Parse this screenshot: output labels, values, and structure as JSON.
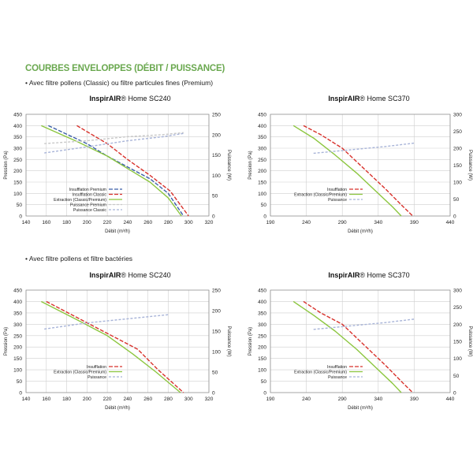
{
  "header": {
    "section_title": "COURBES ENVELOPPES (DÉBIT / PUISSANCE)",
    "subtitle_1": "• Avec filtre pollens (Classic) ou filtre particules fines (Premium)",
    "subtitle_2": "• Avec filtre pollens et filtre bactéries"
  },
  "colors": {
    "insufflation_premium": "#3a5ea8",
    "insufflation_classic": "#d8312b",
    "extraction": "#8cc63f",
    "puissance_premium": "#c8c8c8",
    "puissance_classic": "#a8b4d8",
    "title_green": "#6aa84f"
  },
  "chart_data": [
    {
      "type": "line",
      "title_bold": "InspirAIR",
      "title_reg": "® Home SC240",
      "xlabel": "Débit (m³/h)",
      "ylabel": "Pression (Pa)",
      "y2label": "Puissance (W)",
      "xlim": [
        140,
        320
      ],
      "xticks": [
        140,
        160,
        180,
        200,
        220,
        240,
        260,
        280,
        300,
        320
      ],
      "ylim": [
        0,
        450
      ],
      "yticks": [
        0,
        50,
        100,
        150,
        200,
        250,
        300,
        350,
        400,
        450
      ],
      "y2lim": [
        0,
        250
      ],
      "y2ticks": [
        0,
        50,
        100,
        150,
        200,
        250
      ],
      "legend_position": "bottom-left",
      "series": [
        {
          "name": "Insufflation Premium",
          "axis": "left",
          "color": "#3a5ea8",
          "dash": "5,2",
          "x": [
            162,
            200,
            220,
            245,
            262,
            280,
            295
          ],
          "y": [
            400,
            320,
            265,
            205,
            165,
            100,
            0
          ]
        },
        {
          "name": "Insufflation Classic",
          "axis": "left",
          "color": "#d8312b",
          "dash": "5,2",
          "x": [
            190,
            220,
            240,
            262,
            282,
            300
          ],
          "y": [
            400,
            320,
            250,
            180,
            110,
            0
          ]
        },
        {
          "name": "Extraction (Classic/Premium)",
          "axis": "left",
          "color": "#8cc63f",
          "dash": "",
          "x": [
            155,
            190,
            220,
            240,
            262,
            280,
            293
          ],
          "y": [
            400,
            330,
            265,
            210,
            150,
            80,
            0
          ]
        },
        {
          "name": "Puissance Premium",
          "axis": "right",
          "color": "#c8c8c8",
          "dash": "3,2",
          "x": [
            158,
            200,
            240,
            275,
            295
          ],
          "y": [
            178,
            185,
            195,
            200,
            205
          ]
        },
        {
          "name": "Puissance Classic",
          "axis": "right",
          "color": "#a8b4d8",
          "dash": "3,2",
          "x": [
            158,
            200,
            240,
            275,
            295
          ],
          "y": [
            155,
            170,
            185,
            195,
            203
          ]
        }
      ]
    },
    {
      "type": "line",
      "title_bold": "InspirAIR",
      "title_reg": "® Home SC370",
      "xlabel": "Débit (m³/h)",
      "ylabel": "Pression (Pa)",
      "y2label": "Puissance (W)",
      "xlim": [
        190,
        440
      ],
      "xticks": [
        190,
        240,
        290,
        340,
        390,
        440
      ],
      "ylim": [
        0,
        450
      ],
      "yticks": [
        0,
        50,
        100,
        150,
        200,
        250,
        300,
        350,
        400,
        450
      ],
      "y2lim": [
        0,
        300
      ],
      "y2ticks": [
        0,
        50,
        100,
        150,
        200,
        250,
        300
      ],
      "legend_position": "bottom-left",
      "series": [
        {
          "name": "Insufflation",
          "axis": "left",
          "color": "#d8312b",
          "dash": "5,2",
          "x": [
            236,
            260,
            290,
            320,
            350,
            375,
            388
          ],
          "y": [
            400,
            360,
            300,
            210,
            120,
            40,
            0
          ]
        },
        {
          "name": "Extraction (Classic/Premium)",
          "axis": "left",
          "color": "#8cc63f",
          "dash": "",
          "x": [
            222,
            250,
            280,
            310,
            340,
            360,
            372
          ],
          "y": [
            400,
            345,
            270,
            190,
            100,
            40,
            0
          ]
        },
        {
          "name": "Puissance",
          "axis": "right",
          "color": "#a8b4d8",
          "dash": "3,2",
          "x": [
            250,
            300,
            350,
            390
          ],
          "y": [
            185,
            195,
            205,
            215
          ]
        }
      ]
    },
    {
      "type": "line",
      "title_bold": "InspirAIR",
      "title_reg": "® Home SC240",
      "xlabel": "Débit (m³/h)",
      "ylabel": "Pression (Pa)",
      "y2label": "Puissance (W)",
      "xlim": [
        140,
        320
      ],
      "xticks": [
        140,
        160,
        180,
        200,
        220,
        240,
        260,
        280,
        300,
        320
      ],
      "ylim": [
        0,
        450
      ],
      "yticks": [
        0,
        50,
        100,
        150,
        200,
        250,
        300,
        350,
        400,
        450
      ],
      "y2lim": [
        0,
        250
      ],
      "y2ticks": [
        0,
        50,
        100,
        150,
        200,
        250
      ],
      "legend_position": "bottom-left",
      "series": [
        {
          "name": "Insufflation",
          "axis": "left",
          "color": "#d8312b",
          "dash": "5,2",
          "x": [
            160,
            190,
            220,
            250,
            270,
            295
          ],
          "y": [
            400,
            330,
            260,
            190,
            100,
            0
          ]
        },
        {
          "name": "Extraction (Classic/Premium)",
          "axis": "left",
          "color": "#8cc63f",
          "dash": "",
          "x": [
            155,
            190,
            220,
            245,
            268,
            292
          ],
          "y": [
            400,
            320,
            250,
            170,
            90,
            0
          ]
        },
        {
          "name": "Puissance",
          "axis": "right",
          "color": "#a8b4d8",
          "dash": "3,2",
          "x": [
            158,
            200,
            240,
            280
          ],
          "y": [
            155,
            170,
            180,
            190
          ]
        }
      ]
    },
    {
      "type": "line",
      "title_bold": "InspirAIR",
      "title_reg": "® Home SC370",
      "xlabel": "Débit (m³/h)",
      "ylabel": "Pression (Pa)",
      "y2label": "Puissance (W)",
      "xlim": [
        190,
        440
      ],
      "xticks": [
        190,
        240,
        290,
        340,
        390,
        440
      ],
      "ylim": [
        0,
        450
      ],
      "yticks": [
        0,
        50,
        100,
        150,
        200,
        250,
        300,
        350,
        400,
        450
      ],
      "y2lim": [
        0,
        300
      ],
      "y2ticks": [
        0,
        50,
        100,
        150,
        200,
        250,
        300
      ],
      "legend_position": "bottom-left",
      "series": [
        {
          "name": "Insufflation",
          "axis": "left",
          "color": "#d8312b",
          "dash": "5,2",
          "x": [
            236,
            260,
            290,
            320,
            350,
            375,
            388
          ],
          "y": [
            400,
            350,
            300,
            210,
            120,
            40,
            0
          ]
        },
        {
          "name": "Extraction (Classic/Premium)",
          "axis": "left",
          "color": "#8cc63f",
          "dash": "",
          "x": [
            222,
            250,
            280,
            310,
            340,
            360,
            372
          ],
          "y": [
            400,
            340,
            270,
            190,
            100,
            40,
            0
          ]
        },
        {
          "name": "Puissance",
          "axis": "right",
          "color": "#a8b4d8",
          "dash": "3,2",
          "x": [
            250,
            300,
            350,
            390
          ],
          "y": [
            185,
            195,
            205,
            215
          ]
        }
      ]
    }
  ]
}
